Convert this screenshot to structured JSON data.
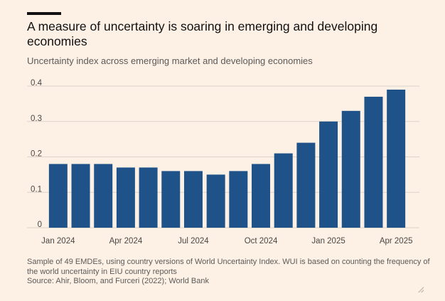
{
  "header": {
    "title": "A measure of uncertainty is soaring in emerging and developing economies",
    "subtitle": "Uncertainty index across emerging market and developing economies"
  },
  "footer": {
    "note": "Sample of 49 EMDEs, using country versions of World Uncertainty Index. WUI is based on counting the frequency of the world uncertainty in EIU country reports",
    "source": "Source: Ahir, Bloom, and Furceri (2022); World Bank"
  },
  "colors": {
    "bar": "#1f5289",
    "grid": "#ddd3ca",
    "background": "#fdf1e6"
  },
  "chart_data": {
    "type": "bar",
    "title": "A measure of uncertainty is soaring in emerging and developing economies",
    "subtitle": "Uncertainty index across emerging market and developing economies",
    "xlabel": "",
    "ylabel": "",
    "categories": [
      "Jan 2024",
      "Feb 2024",
      "Mar 2024",
      "Apr 2024",
      "May 2024",
      "Jun 2024",
      "Jul 2024",
      "Aug 2024",
      "Sep 2024",
      "Oct 2024",
      "Nov 2024",
      "Dec 2024",
      "Jan 2025",
      "Feb 2025",
      "Mar 2025",
      "Apr 2025"
    ],
    "values": [
      0.18,
      0.18,
      0.18,
      0.17,
      0.17,
      0.16,
      0.16,
      0.15,
      0.16,
      0.18,
      0.21,
      0.24,
      0.3,
      0.33,
      0.37,
      0.39
    ],
    "x_tick_labels": [
      "Jan 2024",
      "Apr 2024",
      "Jul 2024",
      "Oct 2024",
      "Jan 2025",
      "Apr 2025"
    ],
    "x_tick_indices": [
      0,
      3,
      6,
      9,
      12,
      15
    ],
    "y_ticks": [
      0,
      0.1,
      0.2,
      0.3,
      0.4
    ],
    "y_tick_labels": [
      "0",
      "0.1",
      "0.2",
      "0.3",
      "0.4"
    ],
    "ylim": [
      0,
      0.4
    ],
    "grid": true,
    "legend": "none"
  }
}
